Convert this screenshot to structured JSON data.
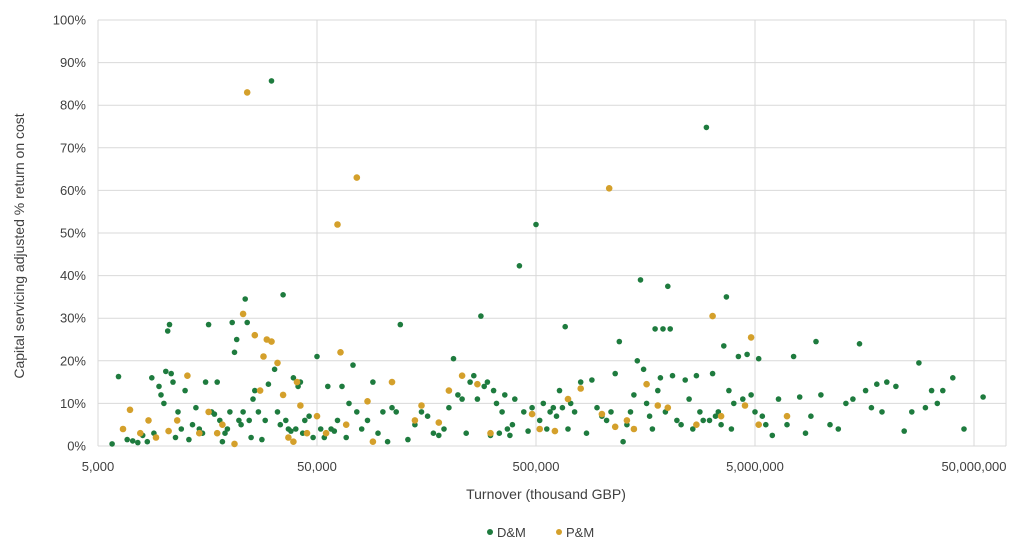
{
  "chart_data": {
    "type": "scatter",
    "x_scale": "log",
    "xlabel": "Turnover (thousand GBP)",
    "ylabel": "Capital servicing adjusted  % return on cost",
    "xlim": [
      5000,
      70000000
    ],
    "ylim": [
      0,
      100
    ],
    "grid": true,
    "legend_position": "bottom-center",
    "x_ticks": [
      5000,
      50000,
      500000,
      5000000,
      50000000
    ],
    "x_tick_labels": [
      "5,000",
      "50,000",
      "500,000",
      "5,000,000",
      "50,000,000"
    ],
    "y_ticks": [
      0,
      10,
      20,
      30,
      40,
      50,
      60,
      70,
      80,
      90,
      100
    ],
    "y_tick_labels": [
      "0%",
      "10%",
      "20%",
      "30%",
      "40%",
      "50%",
      "60%",
      "70%",
      "80%",
      "90%",
      "100%"
    ],
    "series": [
      {
        "name": "D&M",
        "color": "#1e7b3e",
        "points": [
          [
            5800,
            0.5
          ],
          [
            6200,
            16.3
          ],
          [
            6800,
            1.5
          ],
          [
            7200,
            1.2
          ],
          [
            7600,
            0.8
          ],
          [
            8000,
            2.5
          ],
          [
            8400,
            1
          ],
          [
            8800,
            16
          ],
          [
            9000,
            3
          ],
          [
            9500,
            14
          ],
          [
            9700,
            12
          ],
          [
            10000,
            10
          ],
          [
            10200,
            17.5
          ],
          [
            10400,
            27
          ],
          [
            10600,
            28.5
          ],
          [
            10800,
            17
          ],
          [
            11000,
            15
          ],
          [
            11300,
            2
          ],
          [
            11600,
            8
          ],
          [
            12000,
            4
          ],
          [
            12500,
            13
          ],
          [
            13000,
            1.5
          ],
          [
            13500,
            5
          ],
          [
            14000,
            9
          ],
          [
            14500,
            4
          ],
          [
            15000,
            3
          ],
          [
            15500,
            15
          ],
          [
            16000,
            28.5
          ],
          [
            16500,
            8
          ],
          [
            17000,
            7.5
          ],
          [
            17500,
            15
          ],
          [
            18000,
            6
          ],
          [
            18500,
            1
          ],
          [
            19000,
            3
          ],
          [
            19500,
            4
          ],
          [
            20000,
            8
          ],
          [
            20500,
            29
          ],
          [
            21000,
            22
          ],
          [
            21500,
            25
          ],
          [
            22000,
            6
          ],
          [
            22500,
            5
          ],
          [
            23000,
            8
          ],
          [
            23500,
            34.5
          ],
          [
            24000,
            29
          ],
          [
            24500,
            6
          ],
          [
            25000,
            2
          ],
          [
            25500,
            11
          ],
          [
            26000,
            13
          ],
          [
            27000,
            8
          ],
          [
            28000,
            1.5
          ],
          [
            29000,
            6
          ],
          [
            30000,
            14.5
          ],
          [
            31000,
            85.7
          ],
          [
            32000,
            18
          ],
          [
            33000,
            8
          ],
          [
            34000,
            5
          ],
          [
            35000,
            35.5
          ],
          [
            36000,
            6
          ],
          [
            37000,
            4
          ],
          [
            38000,
            3.5
          ],
          [
            39000,
            16
          ],
          [
            40000,
            4
          ],
          [
            41000,
            14
          ],
          [
            42000,
            15
          ],
          [
            43000,
            3
          ],
          [
            44000,
            6
          ],
          [
            45000,
            3
          ],
          [
            46000,
            7
          ],
          [
            48000,
            2
          ],
          [
            50000,
            21
          ],
          [
            52000,
            4
          ],
          [
            54000,
            2
          ],
          [
            56000,
            14
          ],
          [
            58000,
            4
          ],
          [
            60000,
            3.5
          ],
          [
            62000,
            6
          ],
          [
            65000,
            14
          ],
          [
            68000,
            2
          ],
          [
            70000,
            10
          ],
          [
            73000,
            19
          ],
          [
            76000,
            8
          ],
          [
            80000,
            4
          ],
          [
            85000,
            6
          ],
          [
            90000,
            15
          ],
          [
            95000,
            3
          ],
          [
            100000,
            8
          ],
          [
            105000,
            1
          ],
          [
            110000,
            9
          ],
          [
            115000,
            8
          ],
          [
            120000,
            28.5
          ],
          [
            130000,
            1.5
          ],
          [
            140000,
            5
          ],
          [
            150000,
            8
          ],
          [
            160000,
            7
          ],
          [
            170000,
            3
          ],
          [
            180000,
            2.5
          ],
          [
            190000,
            4
          ],
          [
            200000,
            9
          ],
          [
            210000,
            20.5
          ],
          [
            220000,
            12
          ],
          [
            230000,
            11
          ],
          [
            240000,
            3
          ],
          [
            250000,
            15
          ],
          [
            260000,
            16.5
          ],
          [
            270000,
            11
          ],
          [
            280000,
            30.5
          ],
          [
            290000,
            14
          ],
          [
            300000,
            15
          ],
          [
            310000,
            2.5
          ],
          [
            320000,
            13
          ],
          [
            330000,
            10
          ],
          [
            340000,
            3
          ],
          [
            350000,
            8
          ],
          [
            360000,
            12
          ],
          [
            370000,
            4
          ],
          [
            380000,
            2.5
          ],
          [
            390000,
            5
          ],
          [
            400000,
            11
          ],
          [
            420000,
            42.3
          ],
          [
            440000,
            8
          ],
          [
            460000,
            3.5
          ],
          [
            480000,
            9
          ],
          [
            500000,
            52
          ],
          [
            520000,
            6
          ],
          [
            540000,
            10
          ],
          [
            560000,
            4
          ],
          [
            580000,
            8
          ],
          [
            600000,
            9
          ],
          [
            620000,
            7
          ],
          [
            640000,
            13
          ],
          [
            660000,
            9
          ],
          [
            680000,
            28
          ],
          [
            700000,
            4
          ],
          [
            720000,
            10
          ],
          [
            750000,
            8
          ],
          [
            800000,
            15
          ],
          [
            850000,
            3
          ],
          [
            900000,
            15.5
          ],
          [
            950000,
            9
          ],
          [
            1000000,
            7
          ],
          [
            1050000,
            6
          ],
          [
            1100000,
            8
          ],
          [
            1150000,
            17
          ],
          [
            1200000,
            24.5
          ],
          [
            1250000,
            1
          ],
          [
            1300000,
            5
          ],
          [
            1350000,
            8
          ],
          [
            1400000,
            12
          ],
          [
            1450000,
            20
          ],
          [
            1500000,
            39
          ],
          [
            1550000,
            18
          ],
          [
            1600000,
            10
          ],
          [
            1650000,
            7
          ],
          [
            1700000,
            4
          ],
          [
            1750000,
            27.5
          ],
          [
            1800000,
            13
          ],
          [
            1850000,
            16
          ],
          [
            1900000,
            27.5
          ],
          [
            1950000,
            8
          ],
          [
            2000000,
            37.5
          ],
          [
            2050000,
            27.5
          ],
          [
            2100000,
            16.5
          ],
          [
            2200000,
            6
          ],
          [
            2300000,
            5
          ],
          [
            2400000,
            15.5
          ],
          [
            2500000,
            11
          ],
          [
            2600000,
            4
          ],
          [
            2700000,
            16.5
          ],
          [
            2800000,
            8
          ],
          [
            2900000,
            6
          ],
          [
            3000000,
            74.8
          ],
          [
            3100000,
            6
          ],
          [
            3200000,
            17
          ],
          [
            3300000,
            7
          ],
          [
            3400000,
            8
          ],
          [
            3500000,
            5
          ],
          [
            3600000,
            23.5
          ],
          [
            3700000,
            35
          ],
          [
            3800000,
            13
          ],
          [
            3900000,
            4
          ],
          [
            4000000,
            10
          ],
          [
            4200000,
            21
          ],
          [
            4400000,
            11
          ],
          [
            4600000,
            21.5
          ],
          [
            4800000,
            12
          ],
          [
            5000000,
            8
          ],
          [
            5200000,
            20.5
          ],
          [
            5400000,
            7
          ],
          [
            5600000,
            5
          ],
          [
            6000000,
            2.5
          ],
          [
            6400000,
            11
          ],
          [
            7000000,
            5
          ],
          [
            7500000,
            21
          ],
          [
            8000000,
            11.5
          ],
          [
            8500000,
            3
          ],
          [
            9000000,
            7
          ],
          [
            9500000,
            24.5
          ],
          [
            10000000,
            12
          ],
          [
            11000000,
            5
          ],
          [
            12000000,
            4
          ],
          [
            13000000,
            10
          ],
          [
            14000000,
            11
          ],
          [
            15000000,
            24
          ],
          [
            16000000,
            13
          ],
          [
            17000000,
            9
          ],
          [
            18000000,
            14.5
          ],
          [
            19000000,
            8
          ],
          [
            20000000,
            15
          ],
          [
            22000000,
            14
          ],
          [
            24000000,
            3.5
          ],
          [
            26000000,
            8
          ],
          [
            28000000,
            19.5
          ],
          [
            30000000,
            9
          ],
          [
            32000000,
            13
          ],
          [
            34000000,
            10
          ],
          [
            36000000,
            13
          ],
          [
            40000000,
            16
          ],
          [
            45000000,
            4
          ],
          [
            55000000,
            11.5
          ]
        ]
      },
      {
        "name": "P&M",
        "color": "#d4a02b",
        "points": [
          [
            6500,
            4
          ],
          [
            7000,
            8.5
          ],
          [
            7800,
            3
          ],
          [
            8500,
            6
          ],
          [
            9200,
            2
          ],
          [
            10500,
            3.5
          ],
          [
            11500,
            6
          ],
          [
            12800,
            16.5
          ],
          [
            14500,
            3
          ],
          [
            16000,
            8
          ],
          [
            17500,
            3
          ],
          [
            18500,
            5
          ],
          [
            21000,
            0.5
          ],
          [
            23000,
            31
          ],
          [
            24000,
            83
          ],
          [
            26000,
            26
          ],
          [
            27500,
            13
          ],
          [
            28500,
            21
          ],
          [
            29500,
            25
          ],
          [
            31000,
            24.5
          ],
          [
            33000,
            19.5
          ],
          [
            35000,
            12
          ],
          [
            37000,
            2
          ],
          [
            39000,
            1
          ],
          [
            40500,
            15
          ],
          [
            42000,
            9.5
          ],
          [
            45000,
            3
          ],
          [
            50000,
            7
          ],
          [
            55000,
            3
          ],
          [
            62000,
            52
          ],
          [
            64000,
            22
          ],
          [
            68000,
            5
          ],
          [
            76000,
            63
          ],
          [
            85000,
            10.5
          ],
          [
            90000,
            1
          ],
          [
            110000,
            15
          ],
          [
            140000,
            6
          ],
          [
            150000,
            9.5
          ],
          [
            180000,
            5.5
          ],
          [
            200000,
            13
          ],
          [
            230000,
            16.5
          ],
          [
            270000,
            14.5
          ],
          [
            310000,
            3
          ],
          [
            480000,
            7.5
          ],
          [
            520000,
            4
          ],
          [
            610000,
            3.5
          ],
          [
            700000,
            11
          ],
          [
            800000,
            13.5
          ],
          [
            1000000,
            7.5
          ],
          [
            1080000,
            60.5
          ],
          [
            1150000,
            4.5
          ],
          [
            1300000,
            6
          ],
          [
            1400000,
            4
          ],
          [
            1600000,
            14.5
          ],
          [
            1800000,
            9.5
          ],
          [
            2000000,
            9
          ],
          [
            2700000,
            5
          ],
          [
            3200000,
            30.5
          ],
          [
            3500000,
            7
          ],
          [
            4500000,
            9.5
          ],
          [
            4800000,
            25.5
          ],
          [
            5200000,
            5
          ],
          [
            7000000,
            7
          ]
        ]
      }
    ]
  }
}
